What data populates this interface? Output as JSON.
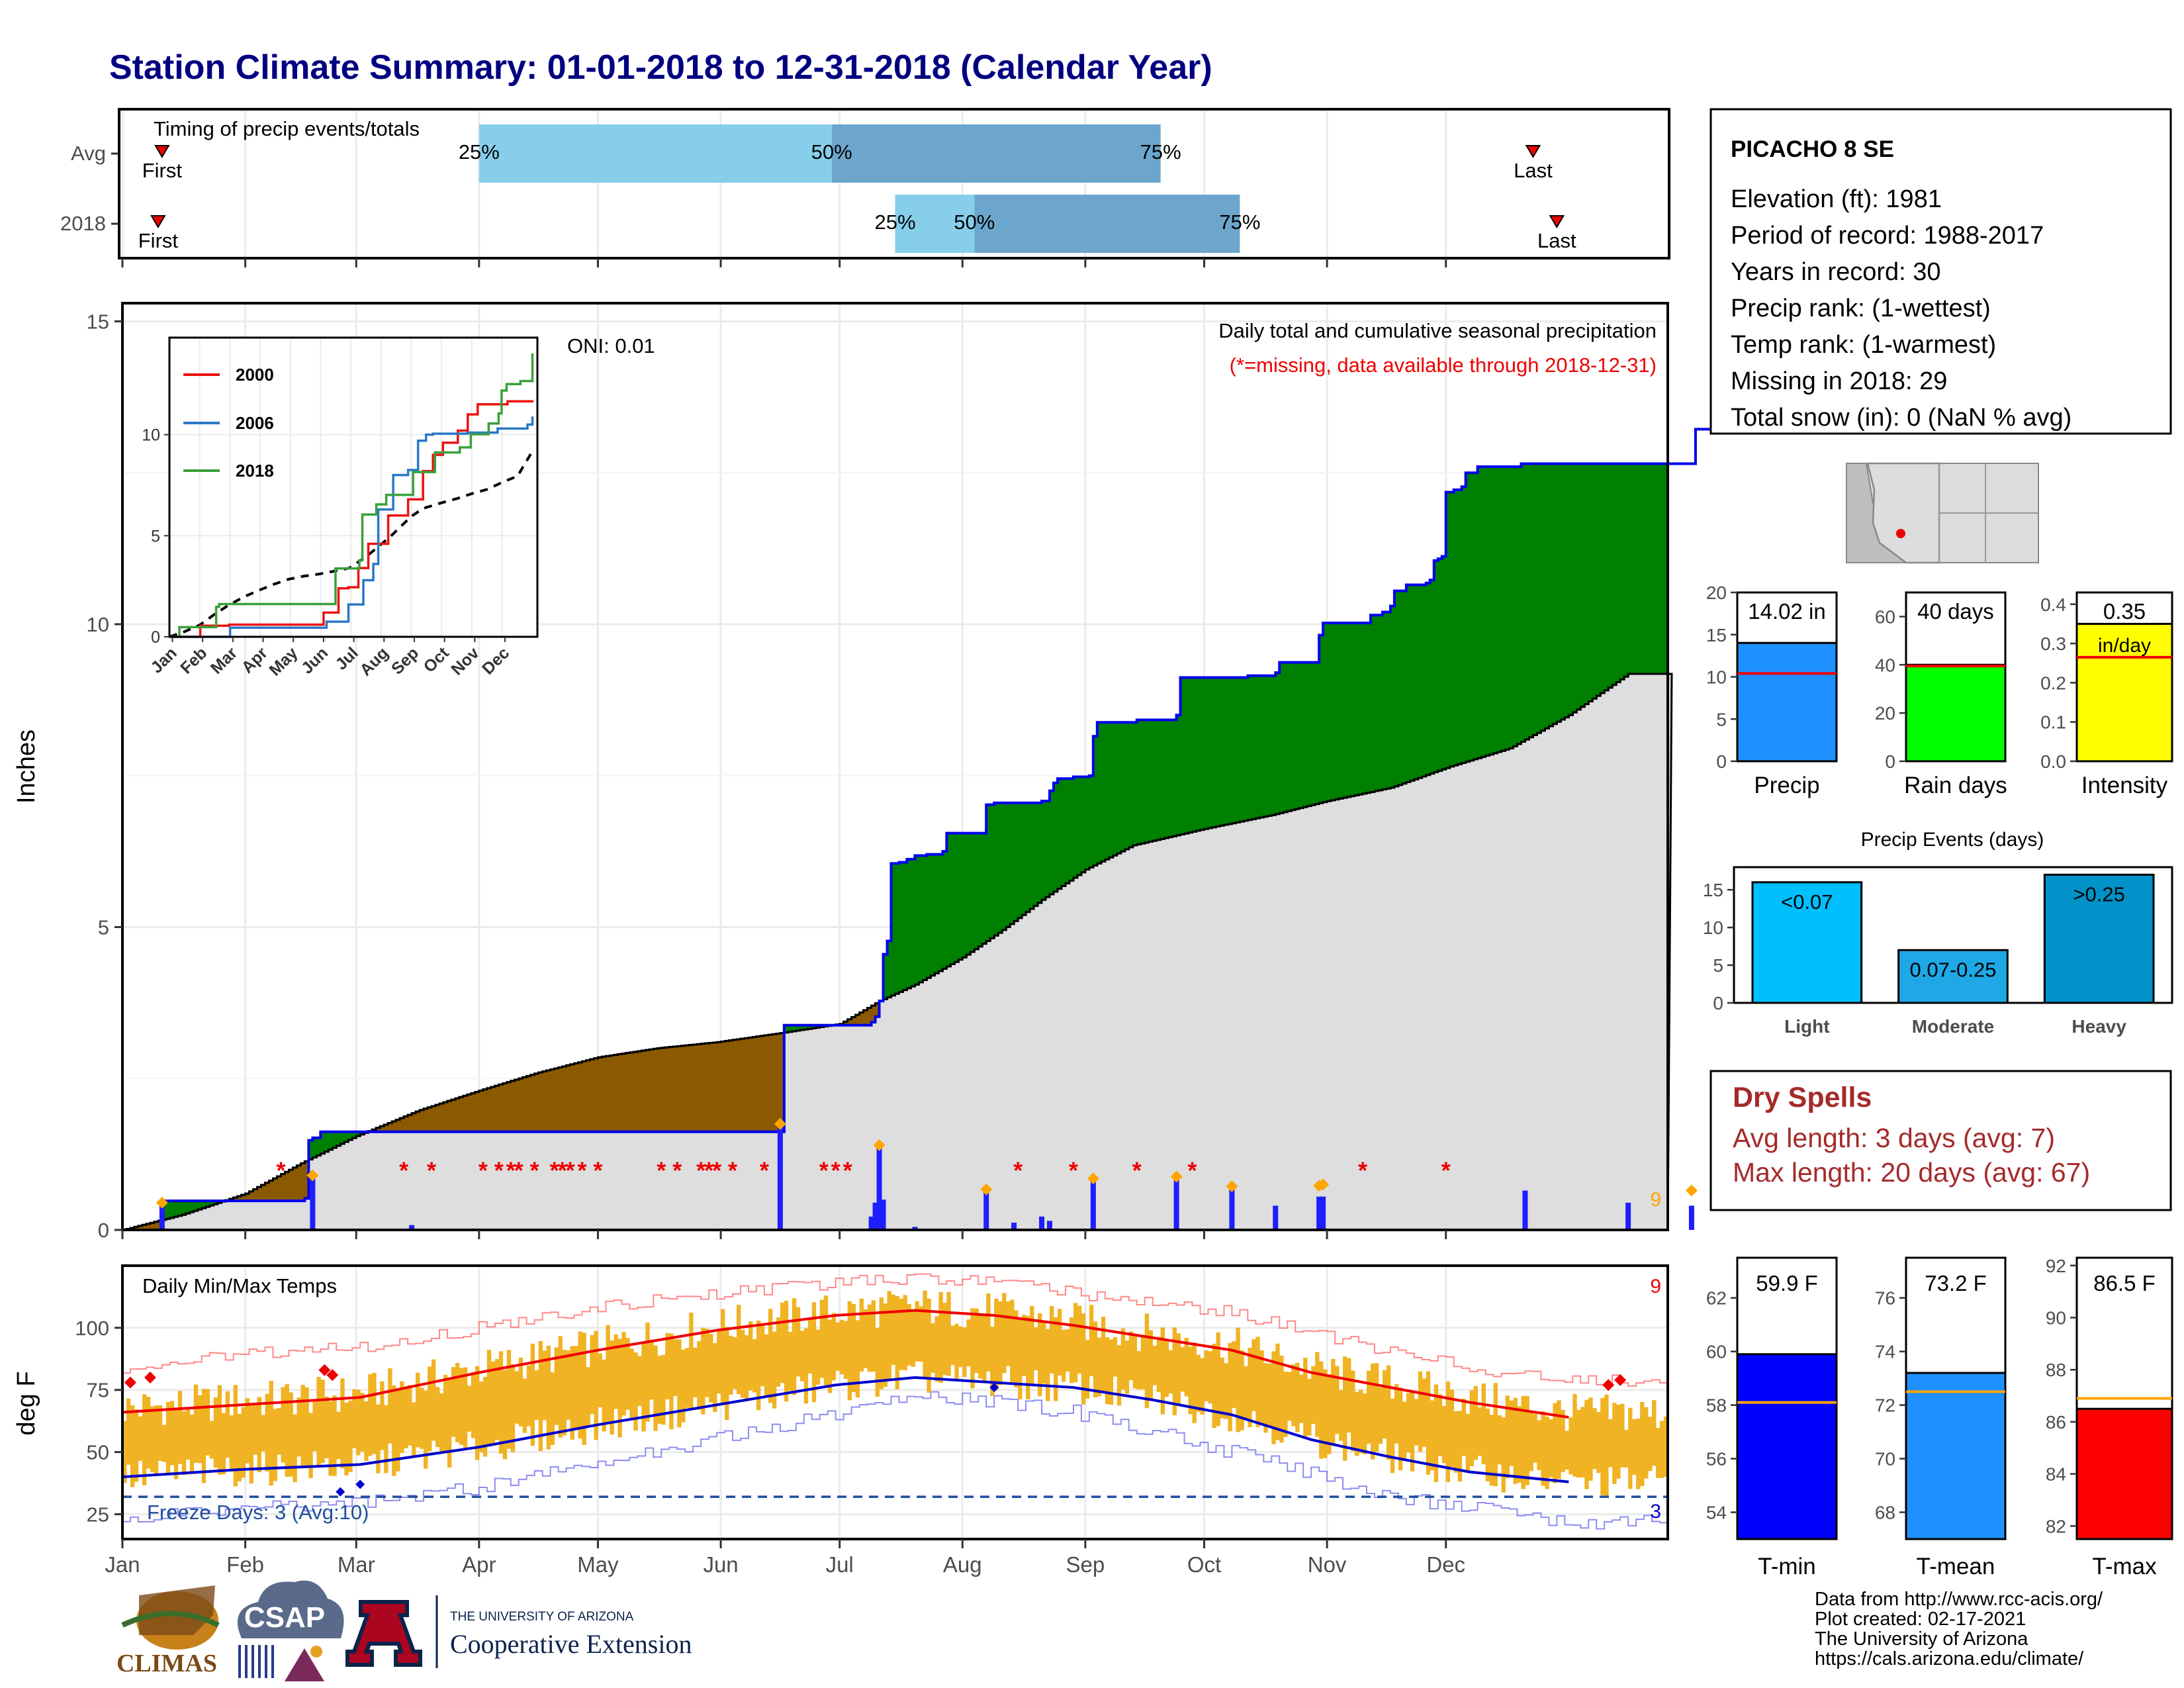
{
  "title": "Station Climate Summary: 01-01-2018 to 12-31-2018 (Calendar Year)",
  "colors": {
    "title": "#000080",
    "light_quart": "#87CEEB",
    "dark_quart": "#6CA6CD",
    "cum_line": "#0000EE",
    "surplus": "#008000",
    "deficit": "#8B5A00",
    "avg_fill": "#DEDEDE",
    "missing": "#EE0000",
    "temp_range": "#F0B323",
    "tmax": "#EE0000",
    "tmin": "#0000CC",
    "dry_spells": "#A52A2A"
  },
  "timing_panel": {
    "label": "Timing of precip events/totals",
    "rows": [
      {
        "name": "Avg",
        "first_label": "First",
        "last_label": "Last",
        "first_day": 10,
        "last_day": 356,
        "q25": 90,
        "q50": 179,
        "q75": 262,
        "p25": "25%",
        "p50": "50%",
        "p75": "75%"
      },
      {
        "name": "2018",
        "first_label": "First",
        "last_label": "Last",
        "first_day": 9,
        "last_day": 362,
        "q25": 195,
        "q50": 215,
        "q75": 282,
        "p25": "25%",
        "p50": "50%",
        "p75": "75%"
      }
    ]
  },
  "precip_panel": {
    "ylabel": "Inches",
    "ylim": [
      0,
      15.3
    ],
    "yticks": [
      0,
      5,
      10,
      15
    ],
    "oni": "ONI: 0.01",
    "label1": "Daily total and cumulative seasonal precipitation",
    "label2": "(*=missing, data available through 2018-12-31)",
    "count_label": "9",
    "cum_2018": [
      [
        0,
        0
      ],
      [
        9,
        0
      ],
      [
        10,
        0.48
      ],
      [
        45,
        0.48
      ],
      [
        46,
        0.52
      ],
      [
        47,
        1.48
      ],
      [
        48,
        1.52
      ],
      [
        50,
        1.62
      ],
      [
        166,
        1.62
      ],
      [
        167,
        3.38
      ],
      [
        188,
        3.38
      ],
      [
        189,
        3.43
      ],
      [
        190,
        3.52
      ],
      [
        191,
        3.78
      ],
      [
        192,
        4.55
      ],
      [
        193,
        4.77
      ],
      [
        194,
        6.05
      ],
      [
        196,
        6.07
      ],
      [
        198,
        6.12
      ],
      [
        200,
        6.18
      ],
      [
        203,
        6.2
      ],
      [
        207,
        6.25
      ],
      [
        208,
        6.55
      ],
      [
        217,
        6.55
      ],
      [
        218,
        7.02
      ],
      [
        220,
        7.05
      ],
      [
        231,
        7.05
      ],
      [
        232,
        7.08
      ],
      [
        234,
        7.25
      ],
      [
        235,
        7.38
      ],
      [
        236,
        7.45
      ],
      [
        240,
        7.48
      ],
      [
        244,
        7.5
      ],
      [
        245,
        8.15
      ],
      [
        246,
        8.38
      ],
      [
        255,
        8.38
      ],
      [
        256,
        8.42
      ],
      [
        265,
        8.42
      ],
      [
        266,
        8.5
      ],
      [
        267,
        9.12
      ],
      [
        283,
        9.12
      ],
      [
        284,
        9.15
      ],
      [
        291,
        9.2
      ],
      [
        292,
        9.37
      ],
      [
        301,
        9.37
      ],
      [
        302,
        9.82
      ],
      [
        303,
        10.02
      ],
      [
        314,
        10.02
      ],
      [
        315,
        10.15
      ],
      [
        318,
        10.2
      ],
      [
        320,
        10.3
      ],
      [
        321,
        10.55
      ],
      [
        324,
        10.65
      ],
      [
        329,
        10.68
      ],
      [
        330,
        10.73
      ],
      [
        331,
        11.05
      ],
      [
        332,
        11.08
      ],
      [
        333,
        11.12
      ],
      [
        334,
        12.18
      ],
      [
        336,
        12.22
      ],
      [
        338,
        12.27
      ],
      [
        339,
        12.5
      ],
      [
        342,
        12.6
      ],
      [
        352,
        12.6
      ],
      [
        353,
        12.65
      ],
      [
        396,
        12.65
      ],
      [
        397,
        13.22
      ],
      [
        432,
        13.22
      ],
      [
        433,
        13.75
      ],
      [
        440,
        13.75
      ],
      [
        441,
        13.95
      ],
      [
        458,
        13.95
      ],
      [
        459,
        14.02
      ],
      [
        500,
        14.02
      ]
    ],
    "cum_avg": [
      [
        0,
        0
      ],
      [
        15,
        0.25
      ],
      [
        31,
        0.6
      ],
      [
        45,
        1.1
      ],
      [
        59,
        1.55
      ],
      [
        75,
        1.98
      ],
      [
        90,
        2.3
      ],
      [
        105,
        2.6
      ],
      [
        120,
        2.85
      ],
      [
        135,
        3.0
      ],
      [
        150,
        3.1
      ],
      [
        166,
        3.25
      ],
      [
        181,
        3.4
      ],
      [
        191,
        3.78
      ],
      [
        200,
        4.05
      ],
      [
        212,
        4.5
      ],
      [
        222,
        4.95
      ],
      [
        232,
        5.45
      ],
      [
        243,
        5.95
      ],
      [
        255,
        6.35
      ],
      [
        273,
        6.62
      ],
      [
        290,
        6.85
      ],
      [
        304,
        7.08
      ],
      [
        320,
        7.3
      ],
      [
        335,
        7.65
      ],
      [
        350,
        7.95
      ],
      [
        365,
        8.5
      ],
      [
        380,
        9.18
      ]
    ],
    "daily_bars": [
      [
        10,
        0.45
      ],
      [
        48,
        0.9
      ],
      [
        73,
        0.08
      ],
      [
        166,
        1.75
      ],
      [
        189,
        0.22
      ],
      [
        190,
        0.45
      ],
      [
        191,
        1.4
      ],
      [
        192,
        0.5
      ],
      [
        200,
        0.05
      ],
      [
        218,
        0.67
      ],
      [
        225,
        0.12
      ],
      [
        232,
        0.22
      ],
      [
        234,
        0.15
      ],
      [
        245,
        0.85
      ],
      [
        266,
        0.88
      ],
      [
        280,
        0.72
      ],
      [
        291,
        0.4
      ],
      [
        302,
        0.55
      ],
      [
        303,
        0.55
      ],
      [
        354,
        0.65
      ],
      [
        380,
        0.45
      ],
      [
        396,
        0.4
      ]
    ],
    "daily_markers": [
      [
        10,
        0.45
      ],
      [
        48,
        0.9
      ],
      [
        166,
        1.75
      ],
      [
        191,
        1.4
      ],
      [
        218,
        0.67
      ],
      [
        245,
        0.85
      ],
      [
        266,
        0.88
      ],
      [
        280,
        0.72
      ],
      [
        302,
        0.73
      ],
      [
        303,
        0.75
      ],
      [
        396,
        0.65
      ]
    ],
    "missing_days": [
      40,
      71,
      78,
      91,
      95,
      98,
      100,
      104,
      109,
      111,
      113,
      116,
      120,
      136,
      140,
      146,
      148,
      150,
      154,
      162,
      177,
      180,
      183,
      226,
      240,
      256,
      270,
      313,
      334
    ],
    "inset": {
      "months": [
        "Jan",
        "Feb",
        "Mar",
        "Apr",
        "May",
        "Jun",
        "Jul",
        "Aug",
        "Sep",
        "Oct",
        "Nov",
        "Dec"
      ],
      "yticks": [
        0,
        5,
        10
      ],
      "ylim": [
        0,
        14.8
      ],
      "series": [
        {
          "name": "2000",
          "color": "#EE1111",
          "points": [
            [
              0,
              0
            ],
            [
              30,
              0
            ],
            [
              31,
              0.55
            ],
            [
              55,
              0.55
            ],
            [
              60,
              0.6
            ],
            [
              150,
              0.6
            ],
            [
              155,
              1.2
            ],
            [
              170,
              2.4
            ],
            [
              180,
              2.45
            ],
            [
              190,
              3.4
            ],
            [
              200,
              4.6
            ],
            [
              220,
              6.0
            ],
            [
              240,
              6.8
            ],
            [
              255,
              8.2
            ],
            [
              265,
              9.0
            ],
            [
              275,
              9.6
            ],
            [
              290,
              10.2
            ],
            [
              300,
              11.0
            ],
            [
              310,
              11.5
            ],
            [
              340,
              11.65
            ],
            [
              365,
              11.7
            ]
          ]
        },
        {
          "name": "2006",
          "color": "#2A78C8",
          "points": [
            [
              0,
              0
            ],
            [
              60,
              0
            ],
            [
              61,
              0.45
            ],
            [
              150,
              0.45
            ],
            [
              158,
              0.75
            ],
            [
              180,
              1.6
            ],
            [
              195,
              2.8
            ],
            [
              205,
              3.6
            ],
            [
              210,
              6.3
            ],
            [
              225,
              8.0
            ],
            [
              240,
              8.25
            ],
            [
              250,
              9.7
            ],
            [
              258,
              10.0
            ],
            [
              265,
              10.05
            ],
            [
              300,
              10.1
            ],
            [
              330,
              10.3
            ],
            [
              360,
              10.5
            ],
            [
              365,
              10.9
            ]
          ]
        },
        {
          "name": "2018",
          "color": "#3AA03A",
          "points": [
            [
              0,
              0
            ],
            [
              9,
              0
            ],
            [
              10,
              0.48
            ],
            [
              47,
              1.48
            ],
            [
              50,
              1.62
            ],
            [
              166,
              1.62
            ],
            [
              167,
              3.38
            ],
            [
              191,
              3.78
            ],
            [
              194,
              6.05
            ],
            [
              208,
              6.55
            ],
            [
              218,
              7.02
            ],
            [
              245,
              8.15
            ],
            [
              267,
              9.12
            ],
            [
              292,
              9.37
            ],
            [
              303,
              10.02
            ],
            [
              321,
              10.55
            ],
            [
              331,
              11.05
            ],
            [
              334,
              12.18
            ],
            [
              339,
              12.5
            ],
            [
              353,
              12.65
            ],
            [
              365,
              14.02
            ]
          ]
        }
      ],
      "avg": [
        [
          0,
          0
        ],
        [
          15,
          0.25
        ],
        [
          31,
          0.6
        ],
        [
          45,
          1.1
        ],
        [
          59,
          1.55
        ],
        [
          75,
          1.98
        ],
        [
          90,
          2.3
        ],
        [
          105,
          2.6
        ],
        [
          120,
          2.85
        ],
        [
          135,
          3.0
        ],
        [
          150,
          3.1
        ],
        [
          166,
          3.25
        ],
        [
          181,
          3.4
        ],
        [
          200,
          4.05
        ],
        [
          222,
          4.95
        ],
        [
          243,
          5.95
        ],
        [
          255,
          6.35
        ],
        [
          273,
          6.62
        ],
        [
          290,
          6.85
        ],
        [
          304,
          7.08
        ],
        [
          320,
          7.3
        ],
        [
          335,
          7.65
        ],
        [
          350,
          7.95
        ],
        [
          365,
          9.18
        ]
      ]
    }
  },
  "temp_panel": {
    "label": "Daily Min/Max Temps",
    "ylabel": "deg F",
    "yticks": [
      25,
      50,
      75,
      100
    ],
    "ylim": [
      15,
      125
    ],
    "freeze_label": "Freeze Days: 3 (Avg:10)",
    "freeze_line": 32,
    "hot_count": "9",
    "cold_count": "3",
    "tmax_avg": [
      [
        0,
        66
      ],
      [
        30,
        69
      ],
      [
        60,
        72
      ],
      [
        90,
        82
      ],
      [
        120,
        91
      ],
      [
        150,
        99
      ],
      [
        180,
        105
      ],
      [
        200,
        107
      ],
      [
        220,
        105
      ],
      [
        240,
        101
      ],
      [
        260,
        96
      ],
      [
        280,
        91
      ],
      [
        300,
        82
      ],
      [
        320,
        76
      ],
      [
        340,
        70
      ],
      [
        365,
        64
      ]
    ],
    "tmin_avg": [
      [
        0,
        40
      ],
      [
        30,
        43
      ],
      [
        60,
        45
      ],
      [
        90,
        52
      ],
      [
        120,
        61
      ],
      [
        150,
        69
      ],
      [
        180,
        77
      ],
      [
        200,
        80
      ],
      [
        220,
        78
      ],
      [
        240,
        76
      ],
      [
        260,
        71
      ],
      [
        280,
        65
      ],
      [
        300,
        55
      ],
      [
        320,
        48
      ],
      [
        340,
        42
      ],
      [
        365,
        38
      ]
    ],
    "tmax_record": [
      [
        0,
        82
      ],
      [
        30,
        90
      ],
      [
        60,
        92
      ],
      [
        90,
        100
      ],
      [
        120,
        108
      ],
      [
        150,
        114
      ],
      [
        180,
        118
      ],
      [
        200,
        120
      ],
      [
        220,
        118
      ],
      [
        240,
        114
      ],
      [
        260,
        111
      ],
      [
        280,
        106
      ],
      [
        300,
        98
      ],
      [
        320,
        90
      ],
      [
        340,
        84
      ],
      [
        365,
        79
      ]
    ],
    "tmin_record": [
      [
        0,
        22
      ],
      [
        30,
        28
      ],
      [
        60,
        30
      ],
      [
        90,
        36
      ],
      [
        120,
        45
      ],
      [
        150,
        55
      ],
      [
        180,
        66
      ],
      [
        200,
        72
      ],
      [
        220,
        70
      ],
      [
        240,
        66
      ],
      [
        260,
        58
      ],
      [
        280,
        50
      ],
      [
        300,
        42
      ],
      [
        320,
        32
      ],
      [
        340,
        28
      ],
      [
        365,
        22
      ]
    ]
  },
  "x_axis": {
    "months": [
      "Jan",
      "Feb",
      "Mar",
      "Apr",
      "May",
      "Jun",
      "Jul",
      "Aug",
      "Sep",
      "Oct",
      "Nov",
      "Dec"
    ],
    "month_start_days": [
      0,
      31,
      59,
      90,
      120,
      151,
      181,
      212,
      243,
      273,
      304,
      334
    ]
  },
  "station": {
    "name": "PICACHO 8 SE",
    "lines": [
      "Elevation (ft): 1981",
      "Period of record: 1988-2017",
      "Years in record: 30",
      "Precip rank:  (1-wettest)",
      "Temp rank:  (1-warmest)",
      "Missing in 2018: 29",
      "Total snow (in): 0 (NaN % avg)"
    ]
  },
  "summary_bars": [
    {
      "name": "Precip",
      "value": 14.02,
      "avg": 10.4,
      "label": "14.02 in",
      "ylim": [
        0,
        20
      ],
      "yticks": [
        0,
        5,
        10,
        15,
        20
      ],
      "color": "#1E90FF"
    },
    {
      "name": "Rain days",
      "value": 40,
      "avg": 39.5,
      "label": "40 days",
      "ylim": [
        0,
        70
      ],
      "yticks": [
        0,
        20,
        40,
        60
      ],
      "color": "#00FF00"
    },
    {
      "name": "Intensity",
      "value": 0.35,
      "avg": 0.265,
      "label": "0.35",
      "label2": "in/day",
      "ylim": [
        0,
        0.43
      ],
      "yticks": [
        0.0,
        0.1,
        0.2,
        0.3,
        0.4
      ],
      "color": "#FFFF00"
    }
  ],
  "precip_events": {
    "title": "Precip Events (days)",
    "categories": [
      "Light",
      "Moderate",
      "Heavy"
    ],
    "values": [
      16,
      7,
      17
    ],
    "labels": [
      "<0.07",
      "0.07-0.25",
      ">0.25"
    ],
    "colors": [
      "#00BFFF",
      "#1EA8E6",
      "#0092C8"
    ],
    "ylim": [
      0,
      18
    ],
    "yticks": [
      0,
      5,
      10,
      15
    ]
  },
  "dry_spells": {
    "title": "Dry Spells",
    "avg_length": "Avg length: 3 days (avg: 7)",
    "max_length": "Max length: 20 days (avg: 67)"
  },
  "temp_bars": [
    {
      "name": "T-min",
      "value": 59.9,
      "avg": 58.1,
      "label": "59.9 F",
      "ylim": [
        53,
        63.5
      ],
      "yticks": [
        54,
        56,
        58,
        60,
        62
      ],
      "color": "#0000FF"
    },
    {
      "name": "T-mean",
      "value": 73.2,
      "avg": 72.5,
      "label": "73.2 F",
      "ylim": [
        67,
        77.5
      ],
      "yticks": [
        68,
        70,
        72,
        74,
        76
      ],
      "color": "#1E90FF"
    },
    {
      "name": "T-max",
      "value": 86.5,
      "avg": 86.9,
      "label": "86.5 F",
      "ylim": [
        81.5,
        92.3
      ],
      "yticks": [
        82,
        84,
        86,
        88,
        90,
        92
      ],
      "color": "#FF0000"
    }
  ],
  "footer": {
    "lines": [
      "Data from http://www.rcc-acis.org/",
      "Plot created: 02-17-2021",
      "The University of Arizona",
      "https://cals.arizona.edu/climate/"
    ]
  },
  "logos": {
    "climas": "CLIMAS",
    "csap": "CSAP",
    "ua_letter": "A",
    "ua_line1": "THE UNIVERSITY OF ARIZONA",
    "ua_line2": "Cooperative Extension"
  }
}
